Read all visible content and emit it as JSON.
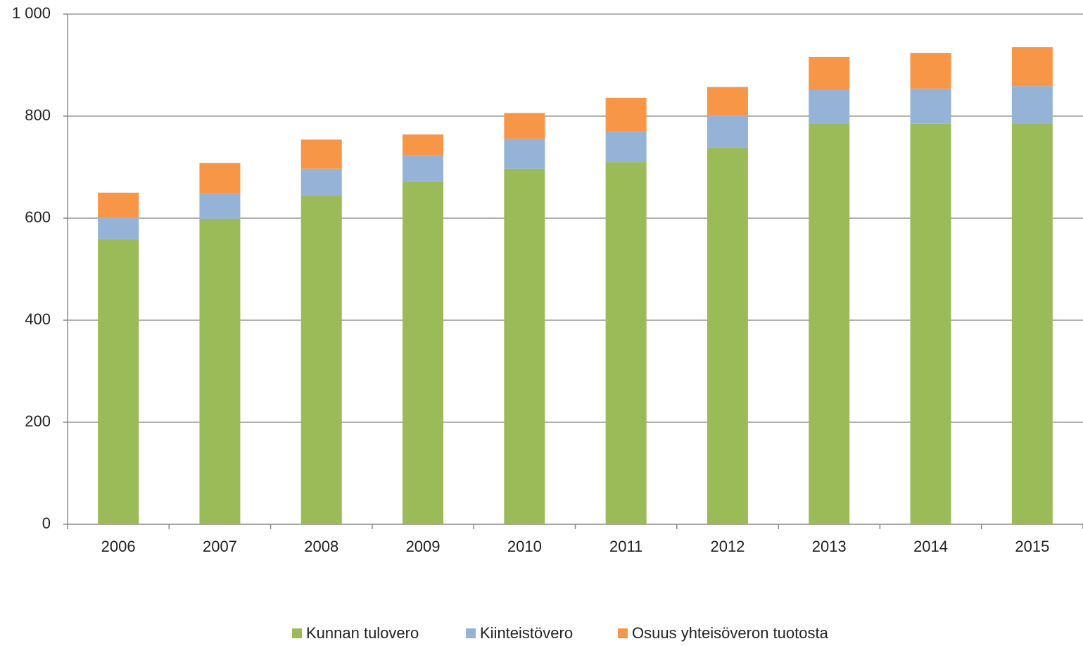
{
  "chart_data": {
    "type": "bar",
    "stacked": true,
    "categories": [
      "2006",
      "2007",
      "2008",
      "2009",
      "2010",
      "2011",
      "2012",
      "2013",
      "2014",
      "2015"
    ],
    "series": [
      {
        "name": "Kunnan tulovero",
        "color": "#9bbb59",
        "values": [
          559,
          599,
          644,
          672,
          697,
          710,
          739,
          786,
          785,
          786
        ]
      },
      {
        "name": "Kiinteistövero",
        "color": "#95b3d7",
        "values": [
          42,
          49,
          53,
          52,
          59,
          61,
          62,
          65,
          69,
          73
        ]
      },
      {
        "name": "Osuus yhteisöveron tuotosta",
        "color": "#f79646",
        "values": [
          49,
          60,
          57,
          40,
          50,
          65,
          56,
          65,
          70,
          76
        ]
      }
    ],
    "ylim": [
      0,
      1000
    ],
    "yticks": [
      0,
      200,
      400,
      600,
      800,
      {
        "value": 1000,
        "label": "1 000"
      }
    ],
    "grid": true,
    "legend": "bottom"
  }
}
